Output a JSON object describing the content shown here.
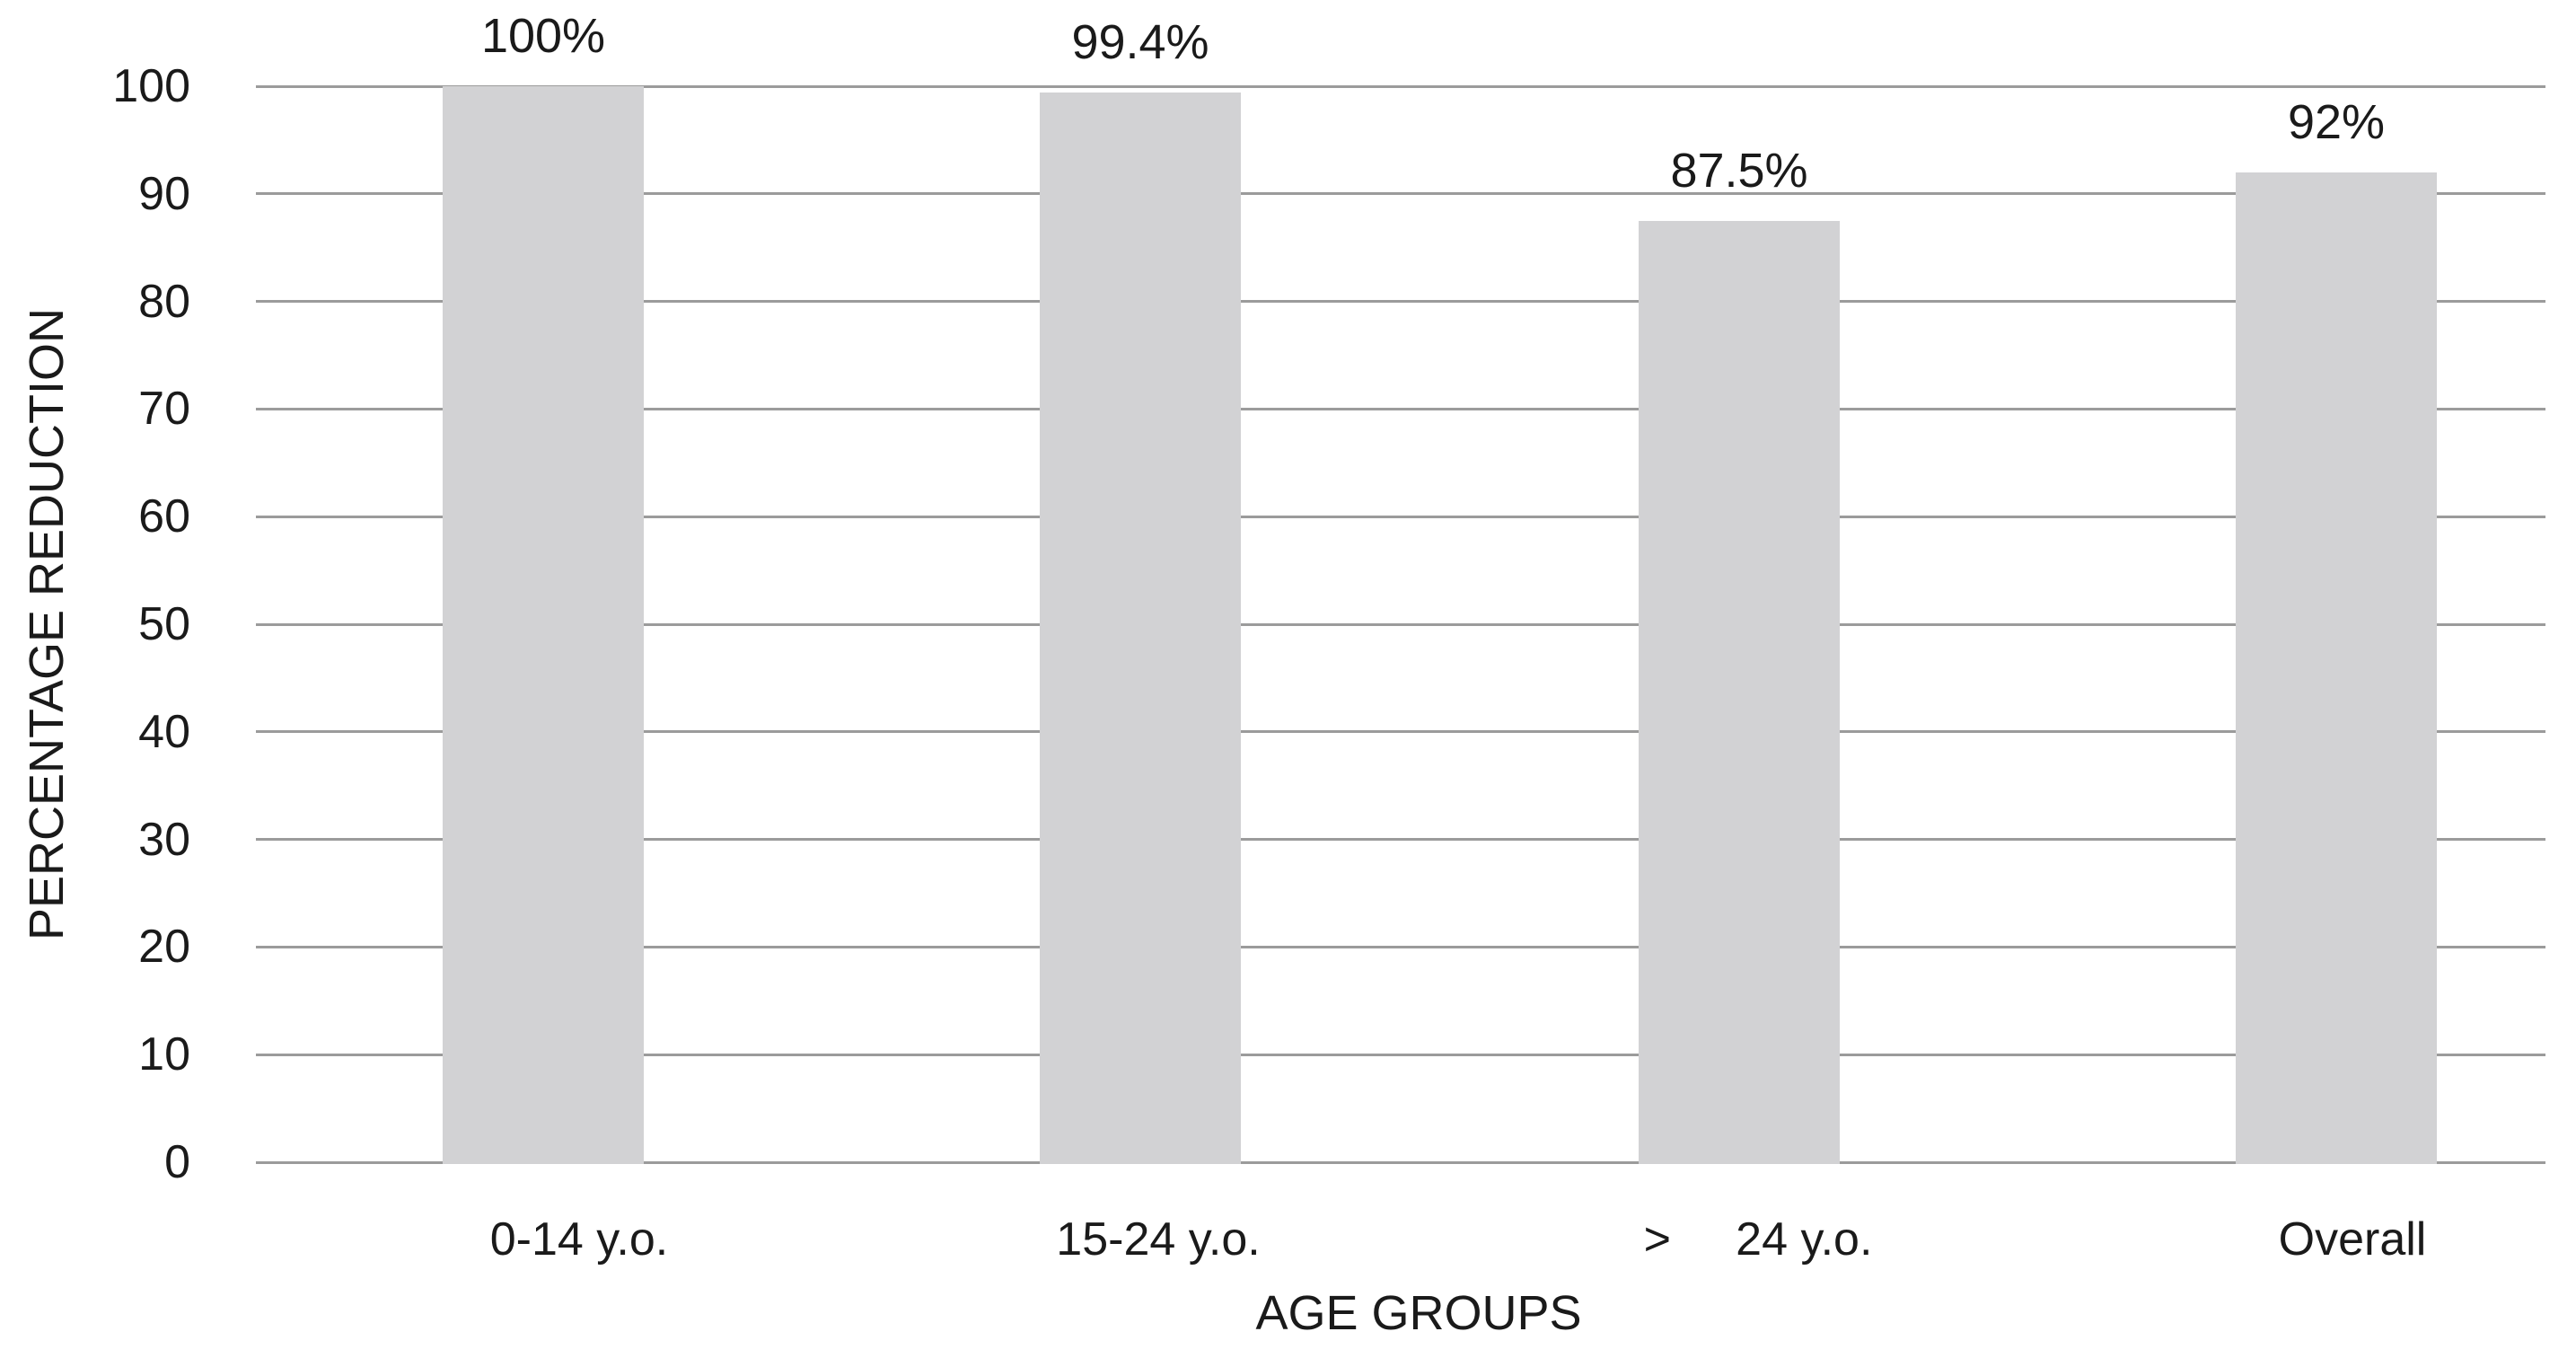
{
  "chart_data": {
    "type": "bar",
    "title": "",
    "xlabel": "AGE GROUPS",
    "ylabel": "PERCENTAGE REDUCTION",
    "categories": [
      "0-14 y.o.",
      "15-24 y.o.",
      ">     24 y.o.",
      "Overall"
    ],
    "values": [
      100,
      99.4,
      87.5,
      92
    ],
    "value_labels": [
      "100%",
      "99.4%",
      "87.5%",
      "92%"
    ],
    "yticks": [
      0,
      10,
      20,
      30,
      40,
      50,
      60,
      70,
      80,
      90,
      100
    ],
    "ylim": [
      0,
      100
    ],
    "grid": "horizontal",
    "legend": "none",
    "colors": {
      "bar_fill": "#d2d2d4",
      "gridline": "#9b9b9b",
      "text": "#1a1a1a",
      "background": "#ffffff"
    }
  }
}
